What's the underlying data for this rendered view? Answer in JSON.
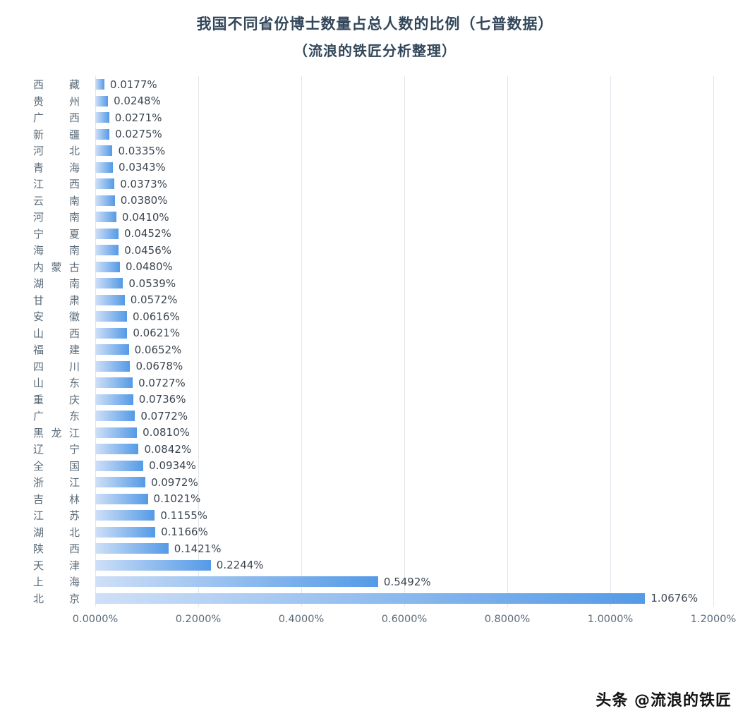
{
  "title": {
    "line1": "我国不同省份博士数量占总人数的比例（七普数据）",
    "line2": "（流浪的铁匠分析整理）"
  },
  "watermark": "头条 @流浪的铁匠",
  "chart_data": {
    "type": "bar",
    "orientation": "horizontal",
    "title": "我国不同省份博士数量占总人数的比例（七普数据）（流浪的铁匠分析整理）",
    "categories": [
      "西藏",
      "贵州",
      "广西",
      "新疆",
      "河北",
      "青海",
      "江西",
      "云南",
      "河南",
      "宁夏",
      "海南",
      "内蒙古",
      "湖南",
      "甘肃",
      "安徽",
      "山西",
      "福建",
      "四川",
      "山东",
      "重庆",
      "广东",
      "黑龙江",
      "辽宁",
      "全国",
      "浙江",
      "吉林",
      "江苏",
      "湖北",
      "陕西",
      "天津",
      "上海",
      "北京"
    ],
    "values": [
      0.0177,
      0.0248,
      0.0271,
      0.0275,
      0.0335,
      0.0343,
      0.0373,
      0.038,
      0.041,
      0.0452,
      0.0456,
      0.048,
      0.0539,
      0.0572,
      0.0616,
      0.0621,
      0.0652,
      0.0678,
      0.0727,
      0.0736,
      0.0772,
      0.081,
      0.0842,
      0.0934,
      0.0972,
      0.1021,
      0.1155,
      0.1166,
      0.1421,
      0.2244,
      0.5492,
      1.0676
    ],
    "value_labels": [
      "0.0177%",
      "0.0248%",
      "0.0271%",
      "0.0275%",
      "0.0335%",
      "0.0343%",
      "0.0373%",
      "0.0380%",
      "0.0410%",
      "0.0452%",
      "0.0456%",
      "0.0480%",
      "0.0539%",
      "0.0572%",
      "0.0616%",
      "0.0621%",
      "0.0652%",
      "0.0678%",
      "0.0727%",
      "0.0736%",
      "0.0772%",
      "0.0810%",
      "0.0842%",
      "0.0934%",
      "0.0972%",
      "0.1021%",
      "0.1155%",
      "0.1166%",
      "0.1421%",
      "0.2244%",
      "0.5492%",
      "1.0676%"
    ],
    "xlim": [
      0,
      1.2
    ],
    "x_tick_labels": [
      "0.0000%",
      "0.2000%",
      "0.4000%",
      "0.6000%",
      "0.8000%",
      "1.0000%",
      "1.2000%"
    ],
    "grid": true,
    "legend": false,
    "bar_gradient": [
      "#cfe0f7",
      "#549ae6"
    ]
  }
}
